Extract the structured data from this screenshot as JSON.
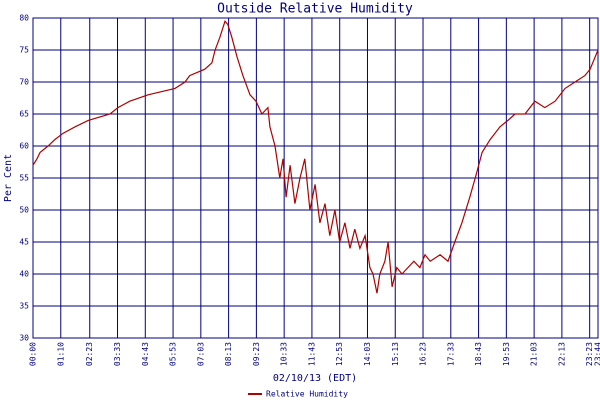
{
  "chart_data": {
    "type": "line",
    "title": "Outside Relative Humidity",
    "x_label": "02/10/13 (EDT)",
    "y_label": "Per Cent",
    "grid": true,
    "legend": "bottom",
    "x": [
      0,
      10,
      18,
      38,
      55,
      76,
      106,
      139,
      194,
      214,
      244,
      290,
      358,
      383,
      395,
      433,
      451,
      459,
      471,
      484,
      491,
      501,
      514,
      529,
      547,
      562,
      577,
      592,
      597,
      610,
      622,
      630,
      638,
      648,
      660,
      673,
      685,
      698,
      711,
      723,
      736,
      748,
      761,
      773,
      786,
      799,
      811,
      824,
      837,
      849,
      857,
      867,
      874,
      887,
      895,
      905,
      917,
      930,
      945,
      960,
      975,
      988,
      1001,
      1026,
      1046,
      1063,
      1081,
      1101,
      1119,
      1132,
      1152,
      1177,
      1197,
      1215,
      1240,
      1265,
      1290,
      1316,
      1341,
      1366,
      1391,
      1404,
      1424
    ],
    "series": [
      {
        "name": "Relative Humidity",
        "color": "#b00000",
        "values": [
          57,
          58,
          59,
          60,
          61,
          62,
          63,
          64,
          65,
          66,
          67,
          68,
          69,
          70,
          71,
          72,
          73,
          75,
          77,
          79.5,
          79,
          77,
          74,
          71,
          68,
          67,
          65,
          66,
          63,
          60,
          55,
          58,
          52,
          57,
          51,
          55,
          58,
          50,
          54,
          48,
          51,
          46,
          50,
          45,
          48,
          44,
          47,
          44,
          46,
          41,
          40,
          37,
          40,
          42,
          45,
          38,
          41,
          40,
          41,
          42,
          41,
          43,
          42,
          43,
          42,
          45,
          48,
          52,
          56,
          59,
          61,
          63,
          64,
          65,
          65,
          67,
          66,
          67,
          69,
          70,
          71,
          72,
          75
        ]
      }
    ],
    "xlim": [
      0,
      1424
    ],
    "xticks": [
      {
        "value": 0,
        "label": "00:00"
      },
      {
        "value": 70,
        "label": "01:10"
      },
      {
        "value": 143,
        "label": "02:23"
      },
      {
        "value": 213,
        "label": "03:33"
      },
      {
        "value": 283,
        "label": "04:43"
      },
      {
        "value": 353,
        "label": "05:53"
      },
      {
        "value": 423,
        "label": "07:03"
      },
      {
        "value": 493,
        "label": "08:13"
      },
      {
        "value": 563,
        "label": "09:23"
      },
      {
        "value": 633,
        "label": "10:33"
      },
      {
        "value": 703,
        "label": "11:43"
      },
      {
        "value": 773,
        "label": "12:53"
      },
      {
        "value": 843,
        "label": "14:03"
      },
      {
        "value": 913,
        "label": "15:13"
      },
      {
        "value": 983,
        "label": "16:23"
      },
      {
        "value": 1053,
        "label": "17:33"
      },
      {
        "value": 1123,
        "label": "18:43"
      },
      {
        "value": 1193,
        "label": "19:53"
      },
      {
        "value": 1263,
        "label": "21:03"
      },
      {
        "value": 1333,
        "label": "22:13"
      },
      {
        "value": 1403,
        "label": "23:23"
      },
      {
        "value": 1424,
        "label": "23:44"
      }
    ],
    "ylim": [
      30,
      80
    ],
    "yticks": [
      30,
      35,
      40,
      45,
      50,
      55,
      60,
      65,
      70,
      75,
      80
    ]
  }
}
